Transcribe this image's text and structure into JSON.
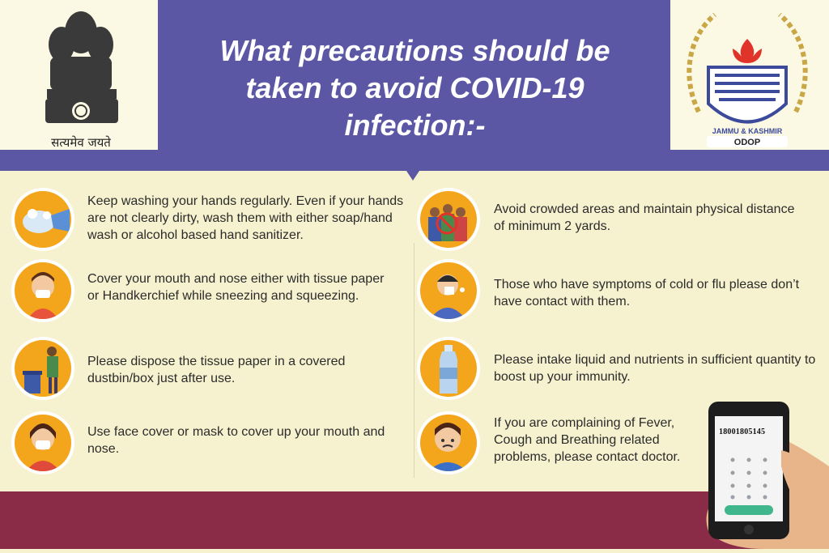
{
  "header": {
    "title_line1": "What precautions should be",
    "title_line2": "taken to avoid COVID-19",
    "title_line3": "infection:-"
  },
  "emblem": {
    "motto": "सत्यमेव जयते",
    "icon": "state-emblem-icon"
  },
  "jk_logo": {
    "name": "JAMMU & KASHMIR",
    "sub": "ODOP",
    "icon": "jk-emblem-icon"
  },
  "left_items": [
    {
      "icon": "handwashing-icon",
      "text": "Keep washing your hands regularly.  Even if your hands are not clearly dirty, wash them with either soap/hand wash or alcohol based hand sanitizer."
    },
    {
      "icon": "sneezing-person-icon",
      "text": "Cover your mouth and nose either with tissue paper or Handkerchief while sneezing and squeezing."
    },
    {
      "icon": "dustbin-icon",
      "text": "Please dispose the tissue paper in a covered dustbin/box just after use."
    },
    {
      "icon": "face-mask-icon",
      "text": "Use face cover or mask to cover up your mouth and nose."
    }
  ],
  "right_items": [
    {
      "icon": "crowd-avoid-icon",
      "text": "Avoid crowded areas and maintain physical distance of minimum 2 yards."
    },
    {
      "icon": "sick-person-icon",
      "text": "Those who have symptoms of cold or flu please don’t have contact with them."
    },
    {
      "icon": "water-bottle-icon",
      "text": "Please intake liquid and nutrients in sufficient quantity to boost up your immunity."
    },
    {
      "icon": "fever-person-icon",
      "text": "If you are complaining of Fever, Cough and Breathing related problems, please contact doctor."
    }
  ],
  "phone": {
    "number": "18001805145",
    "icon": "phone-in-hand-icon"
  },
  "colors": {
    "header": "#5b57a5",
    "accent": "#f3a51b",
    "footer": "#8a2b47",
    "background": "#f6f2cf"
  }
}
